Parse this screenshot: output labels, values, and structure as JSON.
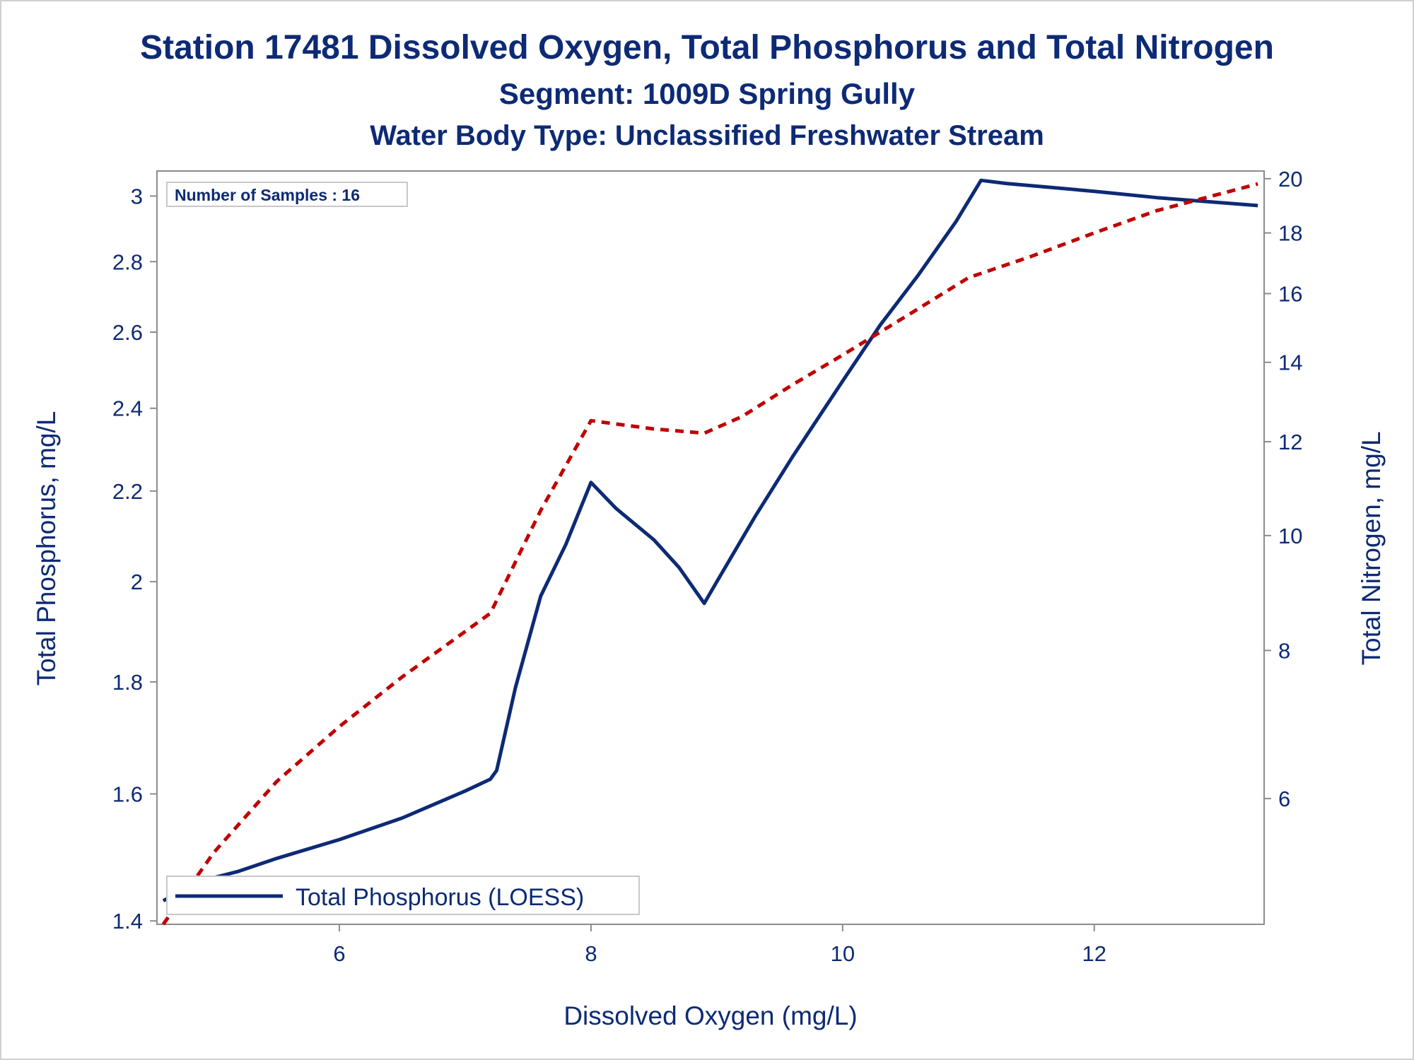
{
  "chart_data": {
    "type": "line",
    "title": "Station 17481  Dissolved Oxygen, Total Phosphorus and Total Nitrogen",
    "subtitle": "Segment: 1009D  Spring Gully",
    "subtitle2": "Water Body Type: Unclassified Freshwater Stream",
    "xlabel": "Dissolved Oxygen (mg/L)",
    "ylabel": "Total Phosphorus, mg/L",
    "y2label": "Total Nitrogen, mg/L",
    "inset_label": "Number of Samples : 16",
    "legend": {
      "position": "bottom-left",
      "entries": [
        "Total Phosphorus (LOESS)"
      ]
    },
    "xlim": [
      4.55,
      13.35
    ],
    "ylim": [
      1.395,
      3.08
    ],
    "y2lim": [
      4.7,
      20.3
    ],
    "yscale": "log",
    "y2scale": "log",
    "x_ticks": [
      6,
      8,
      10,
      12
    ],
    "x_tick_labels": [
      "6",
      "8",
      "10",
      "12"
    ],
    "y_ticks": [
      1.4,
      1.6,
      1.8,
      2.0,
      2.2,
      2.4,
      2.6,
      2.8,
      3.0
    ],
    "y_tick_labels": [
      "1.4",
      "1.6",
      "1.8",
      "2",
      "2.2",
      "2.4",
      "2.6",
      "2.8",
      "3"
    ],
    "y2_ticks": [
      6,
      8,
      10,
      12,
      14,
      16,
      18,
      20
    ],
    "y2_tick_labels": [
      "6",
      "8",
      "10",
      "12",
      "14",
      "16",
      "18",
      "20"
    ],
    "grid": false,
    "series": [
      {
        "name": "Total Phosphorus (LOESS)",
        "axis": "left",
        "color": "#0d2a75",
        "dash": "solid",
        "points": [
          [
            4.6,
            1.43
          ],
          [
            4.8,
            1.45
          ],
          [
            5.0,
            1.465
          ],
          [
            5.2,
            1.475
          ],
          [
            5.5,
            1.495
          ],
          [
            6.0,
            1.525
          ],
          [
            6.5,
            1.56
          ],
          [
            7.0,
            1.605
          ],
          [
            7.2,
            1.625
          ],
          [
            7.25,
            1.64
          ],
          [
            7.4,
            1.79
          ],
          [
            7.6,
            1.97
          ],
          [
            7.8,
            2.08
          ],
          [
            8.0,
            2.22
          ],
          [
            8.2,
            2.16
          ],
          [
            8.5,
            2.09
          ],
          [
            8.7,
            2.03
          ],
          [
            8.9,
            1.955
          ],
          [
            9.0,
            2.0
          ],
          [
            9.3,
            2.14
          ],
          [
            9.6,
            2.28
          ],
          [
            10.0,
            2.47
          ],
          [
            10.3,
            2.62
          ],
          [
            10.6,
            2.76
          ],
          [
            10.9,
            2.92
          ],
          [
            11.1,
            3.05
          ],
          [
            11.3,
            3.04
          ],
          [
            12.0,
            3.015
          ],
          [
            12.5,
            2.995
          ],
          [
            13.3,
            2.97
          ]
        ]
      },
      {
        "axis": "right",
        "color": "#c00000",
        "dash": "dashed",
        "points": [
          [
            4.6,
            4.7
          ],
          [
            5.0,
            5.4
          ],
          [
            5.5,
            6.2
          ],
          [
            6.0,
            6.9
          ],
          [
            6.5,
            7.6
          ],
          [
            7.0,
            8.3
          ],
          [
            7.2,
            8.6
          ],
          [
            7.6,
            10.5
          ],
          [
            8.0,
            12.5
          ],
          [
            8.5,
            12.3
          ],
          [
            8.9,
            12.2
          ],
          [
            9.2,
            12.6
          ],
          [
            9.6,
            13.4
          ],
          [
            10.0,
            14.2
          ],
          [
            10.5,
            15.3
          ],
          [
            11.0,
            16.5
          ],
          [
            11.5,
            17.2
          ],
          [
            12.0,
            18.0
          ],
          [
            12.5,
            18.8
          ],
          [
            13.3,
            19.8
          ]
        ]
      }
    ]
  }
}
